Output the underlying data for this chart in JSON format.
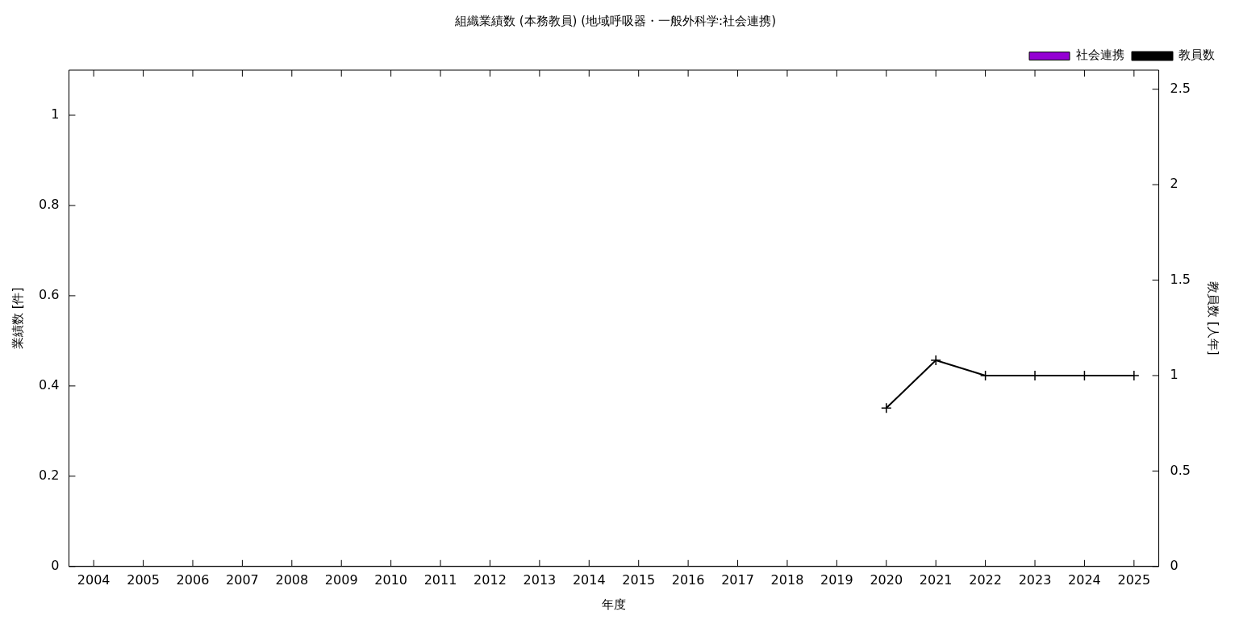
{
  "chart_data": {
    "type": "bar",
    "title": "組織業績数 (本務教員) (地域呼吸器・一般外科学:社会連携)",
    "xlabel": "年度",
    "ylabel": "業績数 [件]",
    "y2label": "教員数 [人年]",
    "categories": [
      "2004",
      "2005",
      "2006",
      "2007",
      "2008",
      "2009",
      "2010",
      "2011",
      "2012",
      "2013",
      "2014",
      "2015",
      "2016",
      "2017",
      "2018",
      "2019",
      "2020",
      "2021",
      "2022",
      "2023",
      "2024",
      "2025"
    ],
    "ylim": [
      0,
      1.1
    ],
    "yticks": [
      0,
      0.2,
      0.4,
      0.6,
      0.8,
      1
    ],
    "y2lim": [
      0,
      2.6
    ],
    "y2ticks": [
      0,
      0.5,
      1,
      1.5,
      2,
      2.5
    ],
    "series": [
      {
        "name": "社会連携",
        "color": "#9400d3",
        "values": [
          0,
          0,
          0,
          0,
          0,
          0,
          0,
          0,
          0,
          0,
          0,
          0,
          0,
          0,
          0,
          0,
          0,
          0,
          0,
          0,
          0,
          0
        ]
      },
      {
        "name": "教員数",
        "type": "line",
        "axis": "y2",
        "color": "#000000",
        "marker": "cross",
        "values": [
          null,
          null,
          null,
          null,
          null,
          null,
          null,
          null,
          null,
          null,
          null,
          null,
          null,
          null,
          null,
          null,
          0.83,
          1.08,
          1,
          1,
          1,
          1
        ]
      }
    ],
    "grid": false,
    "legend": "top right"
  }
}
